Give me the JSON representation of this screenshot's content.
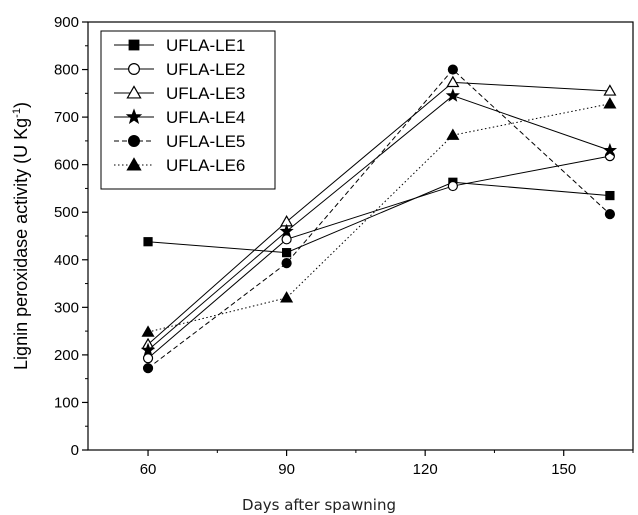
{
  "chart_data": {
    "type": "line",
    "xlabel": "Days after spawning",
    "ylabel_main": "Lignin peroxidase activity (U Kg",
    "ylabel_sup": "-1",
    "ylabel_close": ")",
    "xlim": [
      47,
      165
    ],
    "ylim": [
      0,
      900
    ],
    "xticks": [
      60,
      90,
      120,
      150
    ],
    "yticks": [
      0,
      100,
      200,
      300,
      400,
      500,
      600,
      700,
      800,
      900
    ],
    "legend_position": "top-left",
    "series": [
      {
        "name": "UFLA-LE1",
        "marker": "square",
        "filled": true,
        "dash": "solid",
        "x": [
          60,
          90,
          126,
          160
        ],
        "y": [
          438,
          415,
          563,
          535
        ]
      },
      {
        "name": "UFLA-LE2",
        "marker": "circle",
        "filled": false,
        "dash": "solid",
        "x": [
          60,
          90,
          126,
          160
        ],
        "y": [
          193,
          443,
          555,
          618
        ]
      },
      {
        "name": "UFLA-LE3",
        "marker": "triangle",
        "filled": false,
        "dash": "solid",
        "x": [
          60,
          90,
          126,
          160
        ],
        "y": [
          222,
          480,
          773,
          755
        ]
      },
      {
        "name": "UFLA-LE4",
        "marker": "star",
        "filled": true,
        "dash": "solid",
        "x": [
          60,
          90,
          126,
          160
        ],
        "y": [
          210,
          460,
          745,
          630
        ]
      },
      {
        "name": "UFLA-LE5",
        "marker": "circle",
        "filled": true,
        "dash": "dashed",
        "x": [
          60,
          90,
          126,
          160
        ],
        "y": [
          172,
          393,
          800,
          496
        ]
      },
      {
        "name": "UFLA-LE6",
        "marker": "triangle",
        "filled": true,
        "dash": "dotted",
        "x": [
          60,
          90,
          126,
          160
        ],
        "y": [
          248,
          320,
          662,
          728
        ]
      }
    ]
  }
}
